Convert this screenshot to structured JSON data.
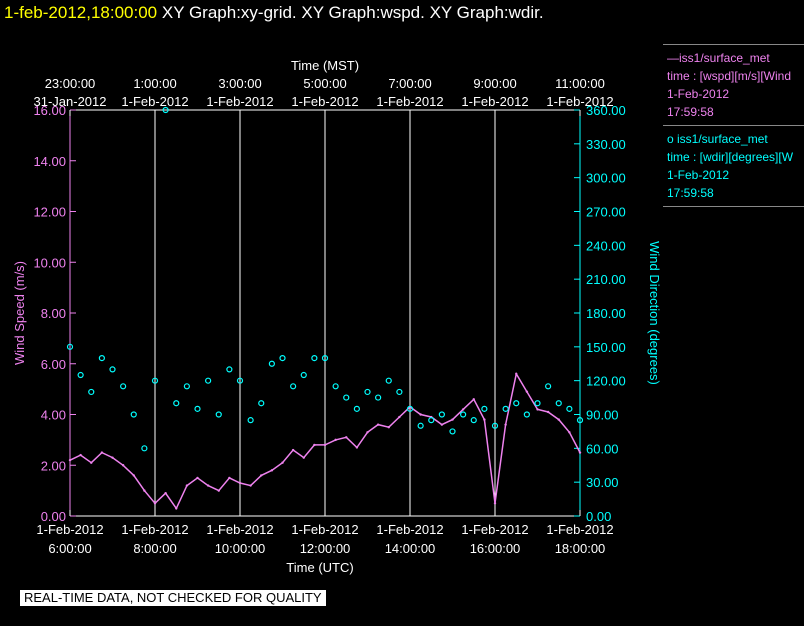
{
  "header": {
    "datetime": "1-feb-2012,18:00:00",
    "title": "XY Graph:xy-grid.  XY Graph:wspd.  XY Graph:wdir."
  },
  "legend": [
    {
      "line1": "—iss1/surface_met",
      "line2": "time : [wspd][m/s][Wind",
      "line3": "1-Feb-2012",
      "line4": "17:59:58",
      "color": "#ee82ee"
    },
    {
      "line1": "o  iss1/surface_met",
      "line2": "time : [wdir][degrees][W",
      "line3": "1-Feb-2012",
      "line4": "17:59:58",
      "color": "#00ffff"
    }
  ],
  "disclaimer": "REAL-TIME DATA, NOT CHECKED FOR QUALITY",
  "chart_data": {
    "type": "line",
    "top_axis": {
      "label": "Time (MST)",
      "ticks": [
        {
          "time": "23:00:00",
          "date": "31-Jan-2012"
        },
        {
          "time": "1:00:00",
          "date": "1-Feb-2012"
        },
        {
          "time": "3:00:00",
          "date": "1-Feb-2012"
        },
        {
          "time": "5:00:00",
          "date": "1-Feb-2012"
        },
        {
          "time": "7:00:00",
          "date": "1-Feb-2012"
        },
        {
          "time": "9:00:00",
          "date": "1-Feb-2012"
        },
        {
          "time": "11:00:00",
          "date": "1-Feb-2012"
        }
      ]
    },
    "bottom_axis": {
      "label": "Time (UTC)",
      "range_hours": [
        6,
        18
      ],
      "ticks": [
        {
          "date": "1-Feb-2012",
          "time": "6:00:00"
        },
        {
          "date": "1-Feb-2012",
          "time": "8:00:00"
        },
        {
          "date": "1-Feb-2012",
          "time": "10:00:00"
        },
        {
          "date": "1-Feb-2012",
          "time": "12:00:00"
        },
        {
          "date": "1-Feb-2012",
          "time": "14:00:00"
        },
        {
          "date": "1-Feb-2012",
          "time": "16:00:00"
        },
        {
          "date": "1-Feb-2012",
          "time": "18:00:00"
        }
      ]
    },
    "left_axis": {
      "label": "Wind Speed (m/s)",
      "ylim": [
        0,
        16
      ],
      "ticks": [
        "0.00",
        "2.00",
        "4.00",
        "6.00",
        "8.00",
        "10.00",
        "12.00",
        "14.00",
        "16.00"
      ],
      "color": "#ee82ee"
    },
    "right_axis": {
      "label": "Wind Direction (degrees)",
      "ylim": [
        0,
        360
      ],
      "ticks": [
        "0.00",
        "30.00",
        "60.00",
        "90.00",
        "120.00",
        "150.00",
        "180.00",
        "210.00",
        "240.00",
        "270.00",
        "300.00",
        "330.00",
        "360.00"
      ],
      "color": "#00ffff"
    },
    "vertical_grid_hours": [
      8,
      10,
      12,
      14,
      16
    ],
    "series": [
      {
        "name": "iss1/surface_met wspd",
        "axis": "left",
        "style": "line",
        "color": "#ee82ee",
        "x_hours": [
          6.0,
          6.25,
          6.5,
          6.75,
          7.0,
          7.25,
          7.5,
          7.75,
          8.0,
          8.25,
          8.5,
          8.75,
          9.0,
          9.25,
          9.5,
          9.75,
          10.0,
          10.25,
          10.5,
          10.75,
          11.0,
          11.25,
          11.5,
          11.75,
          12.0,
          12.25,
          12.5,
          12.75,
          13.0,
          13.25,
          13.5,
          13.75,
          14.0,
          14.25,
          14.5,
          14.75,
          15.0,
          15.25,
          15.5,
          15.75,
          16.0,
          16.25,
          16.5,
          16.75,
          17.0,
          17.25,
          17.5,
          17.75,
          18.0
        ],
        "y": [
          2.2,
          2.4,
          2.1,
          2.5,
          2.3,
          2.0,
          1.6,
          1.0,
          0.5,
          0.9,
          0.3,
          1.2,
          1.5,
          1.2,
          1.0,
          1.5,
          1.3,
          1.2,
          1.6,
          1.8,
          2.1,
          2.6,
          2.3,
          2.8,
          2.8,
          3.0,
          3.1,
          2.7,
          3.3,
          3.6,
          3.5,
          3.9,
          4.3,
          4.0,
          3.9,
          3.6,
          3.8,
          4.2,
          4.6,
          3.8,
          0.5,
          3.6,
          5.6,
          4.9,
          4.2,
          4.1,
          3.8,
          3.3,
          2.5
        ]
      },
      {
        "name": "iss1/surface_met wdir",
        "axis": "right",
        "style": "markers",
        "color": "#00ffff",
        "x_hours": [
          6.0,
          6.25,
          6.5,
          6.75,
          7.0,
          7.25,
          7.5,
          7.75,
          8.0,
          8.25,
          8.5,
          8.75,
          9.0,
          9.25,
          9.5,
          9.75,
          10.0,
          10.25,
          10.5,
          10.75,
          11.0,
          11.25,
          11.5,
          11.75,
          12.0,
          12.25,
          12.5,
          12.75,
          13.0,
          13.25,
          13.5,
          13.75,
          14.0,
          14.25,
          14.5,
          14.75,
          15.0,
          15.25,
          15.5,
          15.75,
          16.0,
          16.25,
          16.5,
          16.75,
          17.0,
          17.25,
          17.5,
          17.75,
          18.0
        ],
        "y": [
          150,
          125,
          110,
          140,
          130,
          115,
          90,
          60,
          120,
          360,
          100,
          115,
          95,
          120,
          90,
          130,
          120,
          85,
          100,
          135,
          140,
          115,
          125,
          140,
          140,
          115,
          105,
          95,
          110,
          105,
          120,
          110,
          95,
          80,
          85,
          90,
          75,
          90,
          85,
          95,
          80,
          95,
          100,
          90,
          100,
          115,
          100,
          95,
          85
        ]
      }
    ]
  }
}
